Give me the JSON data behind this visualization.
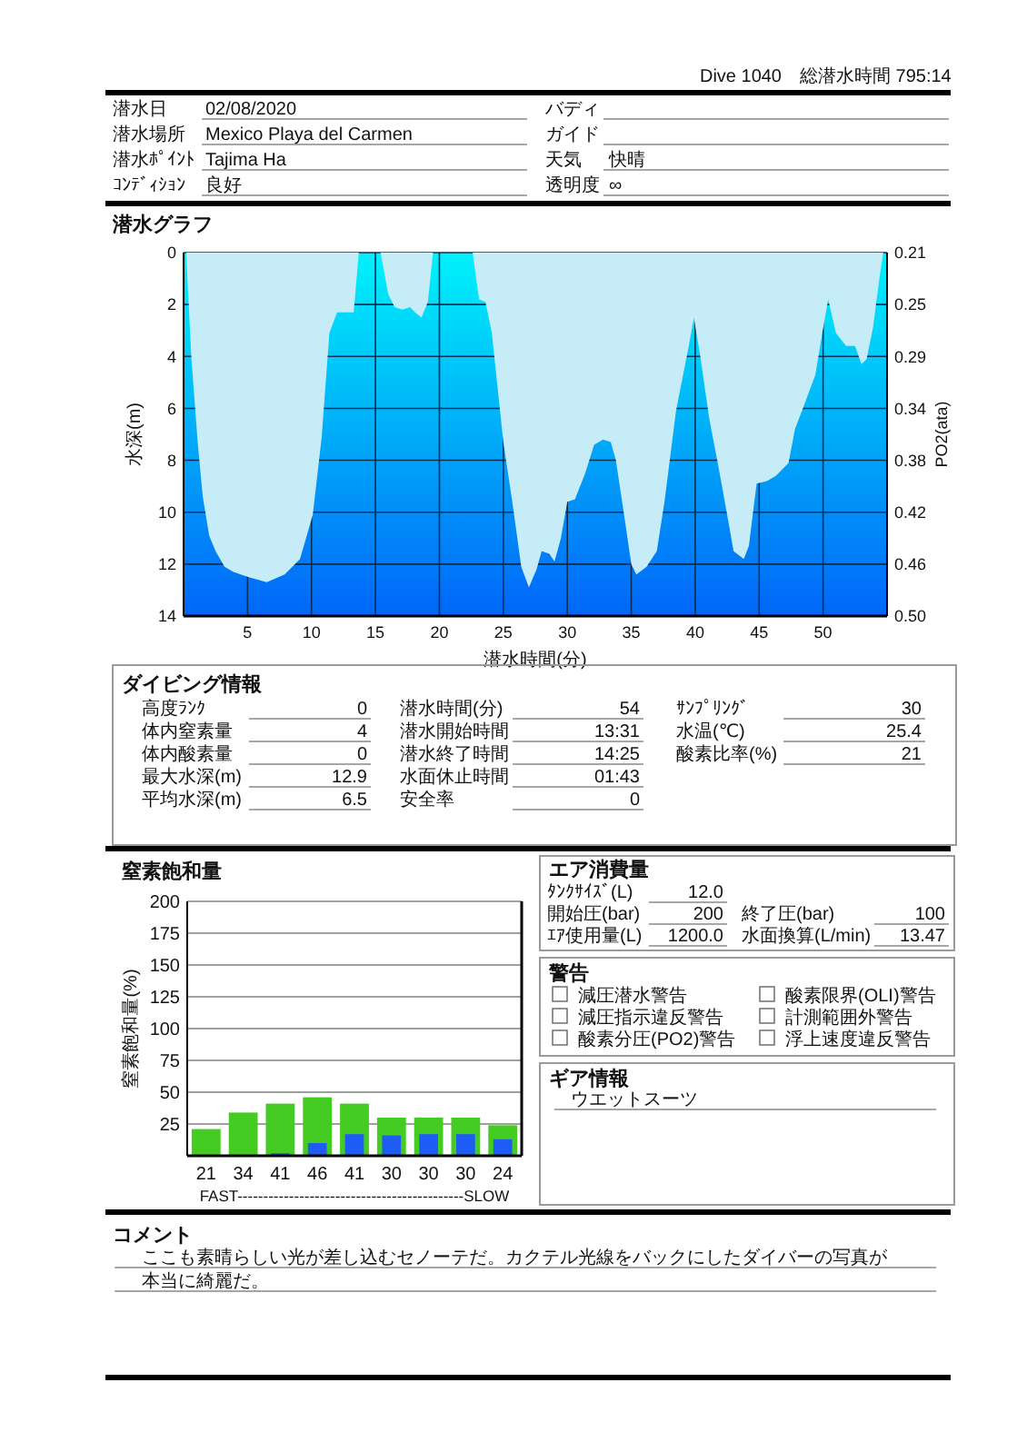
{
  "chart_data": [
    {
      "type": "other",
      "annotations": [
        "Dive 1040",
        "総潜水時間 795:14"
      ],
      "categories": [
        "潜水日",
        "バディ",
        "潜水場所",
        "ガイド",
        "潜水ﾎﾟｲﾝﾄ",
        "天気",
        "ｺﾝﾃﾞｨｼｮﾝ",
        "透明度"
      ],
      "value_labels": [
        "02/08/2020",
        null,
        "Mexico Playa del Carmen",
        null,
        "Tajima Ha",
        "快晴",
        "良好",
        "∞"
      ]
    },
    {
      "type": "area",
      "title": "潜水グラフ",
      "xlabel": "潜水時間(分)",
      "ylabel": "水深(m)",
      "y2label": "PO2(ata)",
      "color": "#c6ecf8",
      "x": [
        0.2,
        0.6,
        1.1,
        1.5,
        2.0,
        2.5,
        3.2,
        3.9,
        5.1,
        6.5,
        7.9,
        9.1,
        10.1,
        10.8,
        11.4,
        12.0,
        12.9,
        13.3,
        13.7,
        15.4,
        16.0,
        16.5,
        17.1,
        17.7,
        18.1,
        18.6,
        19.1,
        19.5,
        22.6,
        23.1,
        23.6,
        24.1,
        25.0,
        25.7,
        26.4,
        27.0,
        27.6,
        28.0,
        28.6,
        29.0,
        29.5,
        30.0,
        30.6,
        31.4,
        32.1,
        32.8,
        33.4,
        33.8,
        34.5,
        35.0,
        35.4,
        36.2,
        37.0,
        37.6,
        38.5,
        39.5,
        39.9,
        40.4,
        41.1,
        41.8,
        42.5,
        43.0,
        43.8,
        44.2,
        44.8,
        45.6,
        46.3,
        47.3,
        47.8,
        48.5,
        49.4,
        49.9,
        50.4,
        51.0,
        51.8,
        52.5,
        53.0,
        53.4,
        53.9,
        54.4,
        54.7
      ],
      "values": [
        0,
        4.0,
        7.3,
        9.4,
        10.9,
        11.5,
        12.1,
        12.3,
        12.5,
        12.7,
        12.4,
        11.8,
        10.1,
        7.1,
        3.1,
        2.3,
        2.3,
        2.3,
        0,
        0,
        1.6,
        2.1,
        2.2,
        2.1,
        2.3,
        2.5,
        1.9,
        0,
        0,
        1.8,
        1.9,
        3.1,
        7.3,
        9.6,
        12.1,
        12.9,
        12.2,
        11.5,
        11.6,
        11.9,
        11.0,
        9.6,
        9.5,
        8.5,
        7.4,
        7.2,
        7.3,
        8.0,
        10.3,
        12.0,
        12.4,
        12.1,
        11.5,
        9.6,
        6.1,
        3.6,
        2.5,
        4.0,
        6.4,
        8.2,
        10.1,
        11.5,
        11.8,
        11.3,
        8.9,
        8.8,
        8.6,
        8.1,
        6.8,
        5.9,
        4.7,
        3.2,
        1.8,
        3.1,
        3.6,
        3.6,
        4.3,
        4.1,
        2.9,
        1.0,
        0
      ],
      "xlim": [
        0,
        55
      ],
      "xticks": [
        5,
        10,
        15,
        20,
        25,
        30,
        35,
        40,
        45,
        50
      ],
      "ylim": [
        14,
        0
      ],
      "yticks": [
        0,
        2,
        4,
        6,
        8,
        10,
        12,
        14
      ],
      "y2lim": [
        0.504,
        0.21
      ],
      "y2ticks": [
        0.21,
        {
          "value": 0.252,
          "label": "0.25"
        },
        {
          "value": 0.294,
          "label": "0.29"
        },
        {
          "value": 0.336,
          "label": "0.34"
        },
        {
          "value": 0.378,
          "label": "0.38"
        },
        0.42,
        {
          "value": 0.462,
          "label": "0.46"
        },
        {
          "value": 0.504,
          "label": "0.50"
        }
      ],
      "grid": true
    },
    {
      "type": "other",
      "title": "ダイビング情報",
      "categories": [
        "高度ﾗﾝｸ",
        "潜水時間(分)",
        "ｻﾝﾌﾟﾘﾝｸﾞ",
        "体内窒素量",
        "潜水開始時間",
        "水温(℃)",
        "体内酸素量",
        "潜水終了時間",
        "酸素比率(%)",
        "最大水深(m)",
        "水面休止時間",
        "平均水深(m)",
        "安全率"
      ],
      "value_labels": [
        "0",
        "54",
        "30",
        "4",
        "13:31",
        "25.4",
        "0",
        "14:25",
        "21",
        "12.9",
        "01:43",
        "6.5",
        "0"
      ]
    },
    {
      "type": "bar",
      "title": "窒素飽和量",
      "ylabel": "窒素飽和量(%)",
      "xlabel": "FAST--------------------------------------------SLOW",
      "categories": [
        "21",
        "34",
        "41",
        "46",
        "41",
        "30",
        "30",
        "30",
        "24"
      ],
      "series": [
        {
          "color": "#44cc22",
          "values": [
            21,
            34,
            41,
            46,
            41,
            30,
            30,
            30,
            24
          ]
        },
        {
          "color": "#1f5cf5",
          "values": [
            null,
            null,
            2,
            10,
            17,
            16,
            17,
            17,
            13
          ]
        }
      ],
      "ylim": [
        0,
        200
      ],
      "yticks": [
        25,
        50,
        75,
        100,
        125,
        150,
        175,
        200
      ],
      "grid": "y"
    },
    {
      "type": "other",
      "title": "エア消費量",
      "categories": [
        "ﾀﾝｸｻｲｽﾞ(L)",
        "開始圧(bar)",
        "終了圧(bar)",
        "ｴｱ使用量(L)",
        "水面換算(L/min)"
      ],
      "value_labels": [
        "12.0",
        "200",
        "100",
        "1200.0",
        "13.47"
      ]
    },
    {
      "type": "other",
      "title": "警告",
      "categories": [
        "減圧潜水警告",
        "酸素限界(OLI)警告",
        "減圧指示違反警告",
        "計測範囲外警告",
        "酸素分圧(PO2)警告",
        "浮上速度違反警告"
      ]
    },
    {
      "type": "other",
      "title": "ギア情報",
      "annotations": [
        "ウエットスーツ"
      ]
    },
    {
      "type": "other",
      "title": "コメント",
      "annotations": [
        "ここも素晴らしい光が差し込むセノーテだ。カクテル光線をバックにしたダイバーの写真が",
        "本当に綺麗だ。"
      ]
    }
  ]
}
